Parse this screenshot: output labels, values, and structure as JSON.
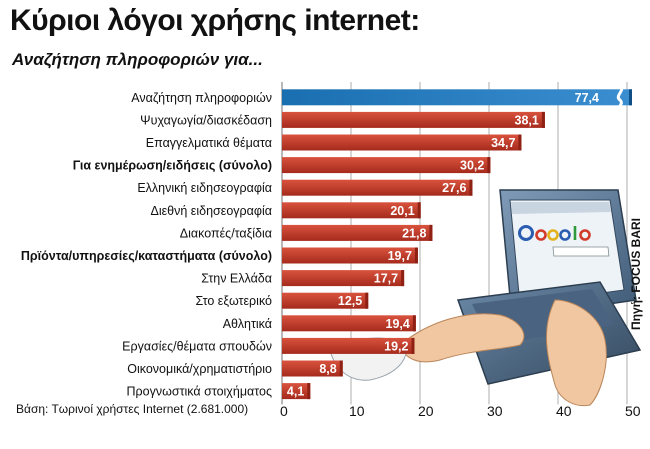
{
  "chart_data": {
    "type": "bar",
    "orientation": "horizontal",
    "title": "Κύριοι λόγοι χρήσης internet:",
    "subtitle": "Αναζήτηση πληροφοριών για...",
    "categories": [
      "Αναζήτηση πληροφοριών",
      "Ψυχαγωγία/διασκέδαση",
      "Επαγγελματικά θέματα",
      "Για ενημέρωση/ειδήσεις (σύνολο)",
      "Ελληνική ειδησεογραφία",
      "Διεθνή ειδησεογραφία",
      "Διακοπές/ταξίδια",
      "Πρϊόντα/υπηρεσίες/καταστήματα (σύνολο)",
      "Στην Ελλάδα",
      "Στο εξωτερικό",
      "Αθλητικά",
      "Εργασίες/θέματα σπουδών",
      "Οικονομικά/χρηματιστήριο",
      "Προγνωστικά στοιχήματος"
    ],
    "bold_categories": [
      3,
      7
    ],
    "values": [
      77.4,
      38.1,
      34.7,
      30.2,
      27.6,
      20.1,
      21.8,
      19.7,
      17.7,
      12.5,
      19.4,
      19.2,
      8.8,
      4.1
    ],
    "value_labels": [
      "77,4",
      "38,1",
      "34,7",
      "30,2",
      "27,6",
      "20,1",
      "21,8",
      "19,7",
      "17,7",
      "12,5",
      "19,4",
      "19,2",
      "8,8",
      "4,1"
    ],
    "x_ticks": [
      "0",
      "10",
      "20",
      "30",
      "40",
      "50"
    ],
    "xlim": [
      0,
      50
    ],
    "axis_break_after": 50,
    "grid": true,
    "note": "Βάση: Τωρινοί χρήστες Internet (2.681.000)",
    "source": "Πηγή: FOCUS BARI",
    "colors": {
      "bar": "#c0392b",
      "bar_dark": "#8e2014",
      "highlight_bar": "#1a6fb0",
      "highlight_bar_light": "#4ea3dd",
      "grid": "#999999"
    },
    "illustration": "laptop-with-google-search-icon"
  }
}
